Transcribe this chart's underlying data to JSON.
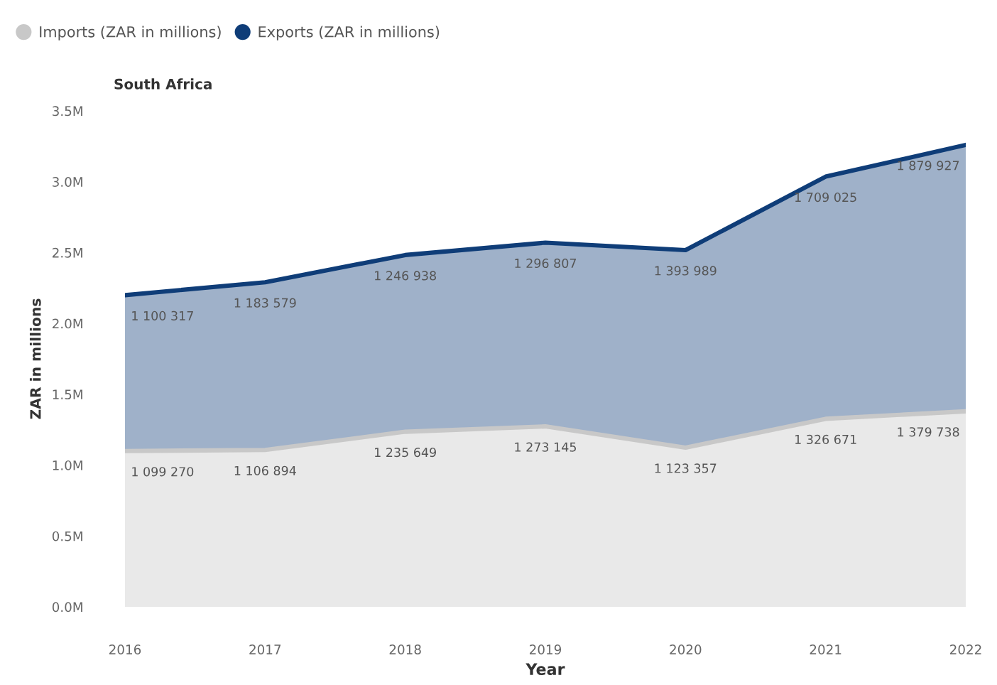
{
  "chart_data": {
    "type": "area",
    "title": "South Africa",
    "xlabel": "Year",
    "ylabel": "ZAR in millions",
    "stacked": true,
    "legend": "top left",
    "grid": false,
    "categories": [
      "2016",
      "2017",
      "2018",
      "2019",
      "2020",
      "2021",
      "2022"
    ],
    "series": [
      {
        "name": "Imports (ZAR in millions)",
        "color": "#c8c8c8",
        "values": [
          1099270,
          1106894,
          1235649,
          1273145,
          1123357,
          1326671,
          1379738
        ],
        "value_labels": [
          "1 099 270",
          "1 106 894",
          "1 235 649",
          "1 273 145",
          "1 123 357",
          "1 326 671",
          "1 379 738"
        ]
      },
      {
        "name": "Exports (ZAR in millions)",
        "color": "#0f3d78",
        "values": [
          1100317,
          1183579,
          1246938,
          1296807,
          1393989,
          1709025,
          1879927
        ],
        "value_labels": [
          "1 100 317",
          "1 183 579",
          "1 246 938",
          "1 296 807",
          "1 393 989",
          "1 709 025",
          "1 879 927"
        ]
      }
    ],
    "ylim": [
      0,
      3500000
    ],
    "yticks": [
      {
        "value": 0,
        "label": "0.0M"
      },
      {
        "value": 500000,
        "label": "0.5M"
      },
      {
        "value": 1000000,
        "label": "1.0M"
      },
      {
        "value": 1500000,
        "label": "1.5M"
      },
      {
        "value": 2000000,
        "label": "2.0M"
      },
      {
        "value": 2500000,
        "label": "2.5M"
      },
      {
        "value": 3000000,
        "label": "3.0M"
      },
      {
        "value": 3500000,
        "label": "3.5M"
      }
    ]
  }
}
